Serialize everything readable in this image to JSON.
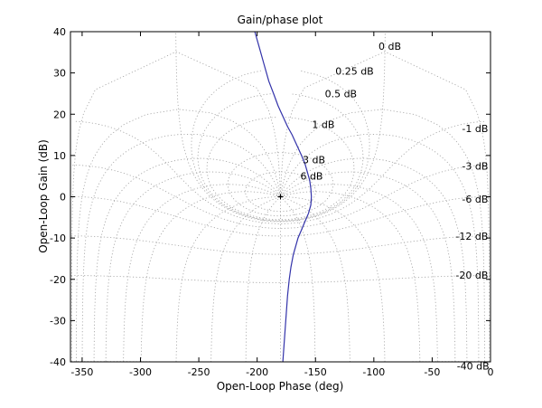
{
  "chart_data": {
    "type": "line",
    "title": "Gain/phase plot",
    "xlabel": "Open-Loop Phase (deg)",
    "ylabel": "Open-Loop Gain (dB)",
    "xlim": [
      -360,
      0
    ],
    "ylim": [
      -40,
      40
    ],
    "xticks": [
      -350,
      -300,
      -250,
      -200,
      -150,
      -100,
      -50,
      0
    ],
    "yticks": [
      -40,
      -30,
      -20,
      -10,
      0,
      10,
      20,
      30,
      40
    ],
    "grid": true,
    "critical_point": {
      "x": -180,
      "y": 0,
      "marker": "+"
    },
    "closed_loop_gain_labels": [
      "0 dB",
      "0.25 dB",
      "0.5 dB",
      "1 dB",
      "3 dB",
      "6 dB",
      "-1 dB",
      "-3 dB",
      "-6 dB",
      "-12 dB",
      "-20 dB",
      "-40 dB"
    ],
    "series": [
      {
        "color": "#3333aa",
        "x": [
          -202,
          -198,
          -194,
          -190,
          -186,
          -182,
          -178,
          -174,
          -170,
          -166,
          -162,
          -159,
          -157,
          -155,
          -154,
          -153.5,
          -154,
          -156,
          -159,
          -162,
          -165,
          -167,
          -169,
          -171,
          -172.5,
          -174,
          -175,
          -176,
          -177,
          -178
        ],
        "y": [
          40,
          36,
          32,
          28,
          25,
          22,
          19.5,
          17,
          15,
          12.5,
          10,
          8,
          6,
          4,
          2,
          0,
          -2,
          -4,
          -6,
          -8,
          -10,
          -12,
          -14,
          -17,
          -20,
          -24,
          -28,
          -32,
          -36,
          -40
        ]
      }
    ]
  }
}
